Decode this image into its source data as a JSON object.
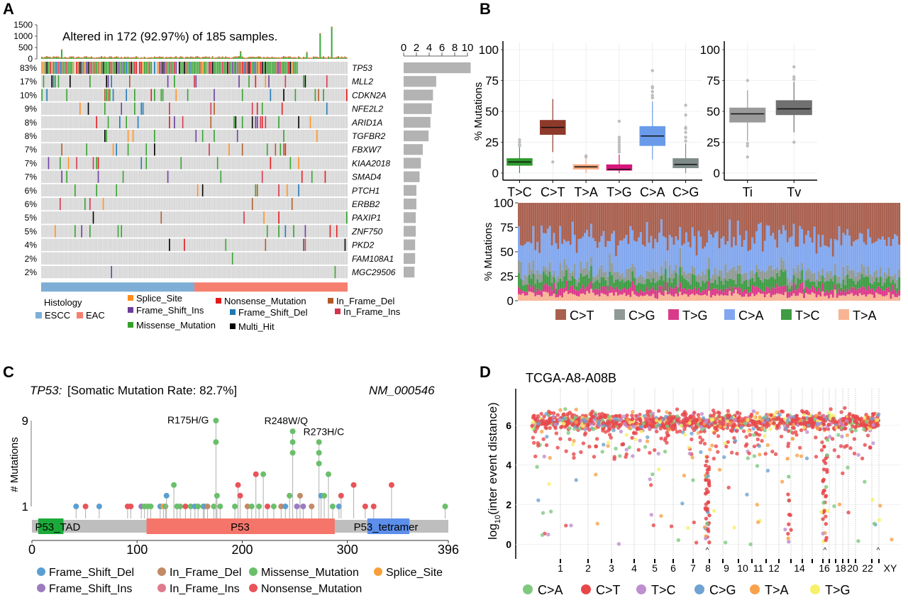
{
  "panels": {
    "A": "A",
    "B": "B",
    "C": "C",
    "D": "D"
  },
  "chart_data": [
    {
      "id": "A",
      "type": "heatmap",
      "subtype": "oncoplot",
      "title": "Altered in 172 (92.97%) of 185 samples.",
      "tmb_axis_ticks": [
        "0",
        "500",
        "1000",
        "1500"
      ],
      "tmb_ylim": [
        0,
        1500
      ],
      "n_samples": 185,
      "n_altered": 172,
      "genes": [
        {
          "name": "TP53",
          "pct": "83%",
          "freq": 0.83,
          "count": 10.5
        },
        {
          "name": "MLL2",
          "pct": "17%",
          "freq": 0.17,
          "count": 5.1
        },
        {
          "name": "CDKN2A",
          "pct": "10%",
          "freq": 0.1,
          "count": 4.6
        },
        {
          "name": "NFE2L2",
          "pct": "9%",
          "freq": 0.09,
          "count": 4.4
        },
        {
          "name": "ARID1A",
          "pct": "8%",
          "freq": 0.08,
          "count": 4.2
        },
        {
          "name": "TGFBR2",
          "pct": "8%",
          "freq": 0.08,
          "count": 3.9
        },
        {
          "name": "FBXW7",
          "pct": "7%",
          "freq": 0.07,
          "count": 3.0
        },
        {
          "name": "KIAA2018",
          "pct": "7%",
          "freq": 0.07,
          "count": 2.7
        },
        {
          "name": "SMAD4",
          "pct": "7%",
          "freq": 0.07,
          "count": 2.5
        },
        {
          "name": "PTCH1",
          "pct": "6%",
          "freq": 0.06,
          "count": 2.0
        },
        {
          "name": "ERBB2",
          "pct": "6%",
          "freq": 0.06,
          "count": 2.0
        },
        {
          "name": "PAXIP1",
          "pct": "5%",
          "freq": 0.05,
          "count": 1.9
        },
        {
          "name": "ZNF750",
          "pct": "5%",
          "freq": 0.05,
          "count": 1.9
        },
        {
          "name": "PKD2",
          "pct": "4%",
          "freq": 0.04,
          "count": 1.8
        },
        {
          "name": "FAM108A1",
          "pct": "2%",
          "freq": 0.02,
          "count": 1.8
        },
        {
          "name": "MGC29506",
          "pct": "2%",
          "freq": 0.02,
          "count": 1.7
        }
      ],
      "side_bar_ticks": [
        "0",
        "2",
        "4",
        "6",
        "8",
        "10"
      ],
      "side_bar_xlim": [
        0,
        10
      ],
      "histology": {
        "title": "Histology",
        "groups": [
          {
            "name": "ESCC",
            "color": "#7EAED6",
            "fraction": 0.5
          },
          {
            "name": "EAC",
            "color": "#F6806F",
            "fraction": 0.5
          }
        ]
      },
      "variant_legend": [
        {
          "name": "Splice_Site",
          "color": "#FF8C1A"
        },
        {
          "name": "Nonsense_Mutation",
          "color": "#E31A1C"
        },
        {
          "name": "In_Frame_Del",
          "color": "#B15928"
        },
        {
          "name": "Frame_Shift_Ins",
          "color": "#6A3D9A"
        },
        {
          "name": "Frame_Shift_Del",
          "color": "#1F78B4"
        },
        {
          "name": "In_Frame_Ins",
          "color": "#D6334D"
        },
        {
          "name": "Missense_Mutation",
          "color": "#33A02C"
        },
        {
          "name": "Multi_Hit",
          "color": "#000000"
        }
      ]
    },
    {
      "id": "B1",
      "type": "box",
      "ylabel": "% Mutations",
      "ylim": [
        0,
        100
      ],
      "yticks": [
        "0",
        "25",
        "50",
        "75",
        "100"
      ],
      "categories": [
        "T>C",
        "C>T",
        "T>A",
        "T>G",
        "C>A",
        "C>G"
      ],
      "boxes": [
        {
          "name": "T>C",
          "color": "#2E9A2E",
          "q1": 6,
          "median": 9,
          "q3": 12,
          "whisker_low": 0,
          "whisker_high": 21,
          "outliers": [
            22,
            23,
            25,
            27
          ]
        },
        {
          "name": "C>T",
          "color": "#8E3A2B",
          "q1": 31,
          "median": 37,
          "q3": 43,
          "whisker_low": 17,
          "whisker_high": 60,
          "outliers": [
            9
          ]
        },
        {
          "name": "T>A",
          "color": "#F7A57C",
          "q1": 3,
          "median": 5,
          "q3": 7,
          "whisker_low": 0,
          "whisker_high": 12,
          "outliers": [
            13,
            14
          ]
        },
        {
          "name": "T>G",
          "color": "#D6157C",
          "q1": 2,
          "median": 3,
          "q3": 7,
          "whisker_low": 0,
          "whisker_high": 15,
          "outliers": [
            17,
            19,
            21,
            23,
            25,
            27,
            29,
            42
          ]
        },
        {
          "name": "C>A",
          "color": "#6A9BEA",
          "q1": 22,
          "median": 30,
          "q3": 38,
          "whisker_low": 11,
          "whisker_high": 58,
          "outliers": [
            61,
            63,
            66,
            69,
            70,
            83
          ]
        },
        {
          "name": "C>G",
          "color": "#7E8B88",
          "q1": 4,
          "median": 7,
          "q3": 12,
          "whisker_low": 0,
          "whisker_high": 24,
          "outliers": [
            26,
            29,
            33,
            36,
            37,
            47,
            55
          ]
        }
      ]
    },
    {
      "id": "B2",
      "type": "box",
      "ylim": [
        0,
        100
      ],
      "yticks": [
        "0",
        "25",
        "50",
        "75",
        "100"
      ],
      "categories": [
        "Ti",
        "Tv"
      ],
      "boxes": [
        {
          "name": "Ti",
          "color": "#9A9A9A",
          "q1": 41,
          "median": 48,
          "q3": 53,
          "whisker_low": 26,
          "whisker_high": 67,
          "outliers": [
            13,
            22,
            24,
            75
          ]
        },
        {
          "name": "Tv",
          "color": "#707070",
          "q1": 47,
          "median": 52,
          "q3": 59,
          "whisker_low": 33,
          "whisker_high": 74,
          "outliers": [
            25,
            76,
            78,
            86
          ]
        }
      ]
    },
    {
      "id": "B3",
      "type": "bar",
      "subtype": "stacked-percent",
      "ylabel": "% Mutations",
      "ylim": [
        0,
        100
      ],
      "yticks": [
        "0",
        "25",
        "50",
        "75",
        "100"
      ],
      "n_samples": 185,
      "stack_order_bottom_to_top": [
        "T>A",
        "T>G",
        "T>C",
        "C>G",
        "C>A",
        "C>T"
      ],
      "mean_composition": {
        "T>A": 6,
        "T>G": 6,
        "T>C": 9,
        "C>G": 9,
        "C>A": 32,
        "C>T": 38
      },
      "legend": [
        {
          "name": "C>T",
          "color": "#A9604F"
        },
        {
          "name": "C>G",
          "color": "#8F9A97"
        },
        {
          "name": "T>G",
          "color": "#DA3A8A"
        },
        {
          "name": "C>A",
          "color": "#82A7EE"
        },
        {
          "name": "T>C",
          "color": "#3F9C45"
        },
        {
          "name": "T>A",
          "color": "#F9B494"
        }
      ]
    },
    {
      "id": "C",
      "type": "scatter",
      "subtype": "lollipop",
      "gene": "TP53:",
      "title": "[Somatic Mutation Rate: 82.7%]",
      "transcript": "NM_000546",
      "ylabel": "# Mutations",
      "yticks": [
        "1",
        "9"
      ],
      "ylim": [
        1,
        9
      ],
      "xticks": [
        "0",
        "100",
        "200",
        "300",
        "396"
      ],
      "xlim": [
        0,
        396
      ],
      "domains": [
        {
          "name": "P53_TAD",
          "label": "P53_TAD",
          "start": 6,
          "end": 30,
          "color": "#1BAA3A"
        },
        {
          "name": "P53",
          "label": "P53",
          "start": 109,
          "end": 288,
          "color": "#F5756A"
        },
        {
          "name": "P53_tetramer",
          "label": "P53_tetramer",
          "start": 319,
          "end": 359,
          "color": "#5C8FEA"
        }
      ],
      "labeled_hotspots": [
        {
          "label": "R175H/G",
          "pos": 175,
          "count": 9
        },
        {
          "label": "R248W/Q",
          "pos": 248,
          "count": 8
        },
        {
          "label": "R273H/C",
          "pos": 273,
          "count": 7
        }
      ],
      "mutations": [
        {
          "pos": 42,
          "count": 1,
          "type": "Frame_Shift_Del"
        },
        {
          "pos": 51,
          "count": 1,
          "type": "Nonsense_Mutation"
        },
        {
          "pos": 64,
          "count": 1,
          "type": "Frame_Shift_Del"
        },
        {
          "pos": 91,
          "count": 1,
          "type": "Nonsense_Mutation"
        },
        {
          "pos": 94,
          "count": 1,
          "type": "Nonsense_Mutation"
        },
        {
          "pos": 104,
          "count": 1,
          "type": "Frame_Shift_Ins"
        },
        {
          "pos": 107,
          "count": 1,
          "type": "Missense_Mutation"
        },
        {
          "pos": 110,
          "count": 1,
          "type": "Missense_Mutation"
        },
        {
          "pos": 113,
          "count": 1,
          "type": "Missense_Mutation"
        },
        {
          "pos": 122,
          "count": 1,
          "type": "Frame_Shift_Del"
        },
        {
          "pos": 125,
          "count": 1,
          "type": "Splice_Site"
        },
        {
          "pos": 127,
          "count": 1,
          "type": "Missense_Mutation"
        },
        {
          "pos": 128,
          "count": 2,
          "type": "Frame_Shift_Del"
        },
        {
          "pos": 135,
          "count": 3,
          "type": "Missense_Mutation"
        },
        {
          "pos": 138,
          "count": 1,
          "type": "Missense_Mutation"
        },
        {
          "pos": 141,
          "count": 1,
          "type": "Missense_Mutation"
        },
        {
          "pos": 146,
          "count": 1,
          "type": "Nonsense_Mutation"
        },
        {
          "pos": 151,
          "count": 1,
          "type": "Missense_Mutation"
        },
        {
          "pos": 155,
          "count": 1,
          "type": "Frame_Shift_Del"
        },
        {
          "pos": 158,
          "count": 1,
          "type": "Missense_Mutation"
        },
        {
          "pos": 163,
          "count": 1,
          "type": "Missense_Mutation"
        },
        {
          "pos": 164,
          "count": 1,
          "type": "Frame_Shift_Del"
        },
        {
          "pos": 167,
          "count": 1,
          "type": "In_Frame_Del"
        },
        {
          "pos": 173,
          "count": 1,
          "type": "Missense_Mutation"
        },
        {
          "pos": 175,
          "count": 9,
          "type": "Missense_Mutation"
        },
        {
          "pos": 176,
          "count": 2,
          "type": "Missense_Mutation"
        },
        {
          "pos": 179,
          "count": 1,
          "type": "Missense_Mutation"
        },
        {
          "pos": 193,
          "count": 1,
          "type": "Missense_Mutation"
        },
        {
          "pos": 196,
          "count": 3,
          "type": "Nonsense_Mutation"
        },
        {
          "pos": 198,
          "count": 2,
          "type": "Nonsense_Mutation"
        },
        {
          "pos": 205,
          "count": 1,
          "type": "In_Frame_Del"
        },
        {
          "pos": 209,
          "count": 1,
          "type": "Missense_Mutation"
        },
        {
          "pos": 213,
          "count": 4,
          "type": "Nonsense_Mutation"
        },
        {
          "pos": 216,
          "count": 1,
          "type": "Missense_Mutation"
        },
        {
          "pos": 220,
          "count": 4,
          "type": "Missense_Mutation"
        },
        {
          "pos": 224,
          "count": 1,
          "type": "Nonsense_Mutation"
        },
        {
          "pos": 230,
          "count": 1,
          "type": "Missense_Mutation"
        },
        {
          "pos": 237,
          "count": 1,
          "type": "In_Frame_Del"
        },
        {
          "pos": 241,
          "count": 1,
          "type": "Frame_Shift_Del"
        },
        {
          "pos": 245,
          "count": 2,
          "type": "Missense_Mutation"
        },
        {
          "pos": 248,
          "count": 8,
          "type": "Missense_Mutation"
        },
        {
          "pos": 252,
          "count": 1,
          "type": "Frame_Shift_Ins"
        },
        {
          "pos": 255,
          "count": 2,
          "type": "In_Frame_Del"
        },
        {
          "pos": 258,
          "count": 1,
          "type": "Frame_Shift_Ins"
        },
        {
          "pos": 266,
          "count": 1,
          "type": "In_Frame_Del"
        },
        {
          "pos": 273,
          "count": 7,
          "type": "Missense_Mutation"
        },
        {
          "pos": 275,
          "count": 2,
          "type": "Frame_Shift_Del"
        },
        {
          "pos": 278,
          "count": 2,
          "type": "Missense_Mutation"
        },
        {
          "pos": 282,
          "count": 4,
          "type": "Missense_Mutation"
        },
        {
          "pos": 286,
          "count": 1,
          "type": "Missense_Mutation"
        },
        {
          "pos": 292,
          "count": 1,
          "type": "Frame_Shift_Del"
        },
        {
          "pos": 294,
          "count": 2,
          "type": "Nonsense_Mutation"
        },
        {
          "pos": 306,
          "count": 3,
          "type": "Nonsense_Mutation"
        },
        {
          "pos": 317,
          "count": 1,
          "type": "Nonsense_Mutation"
        },
        {
          "pos": 325,
          "count": 1,
          "type": "Nonsense_Mutation"
        },
        {
          "pos": 342,
          "count": 3,
          "type": "Nonsense_Mutation"
        },
        {
          "pos": 393,
          "count": 1,
          "type": "Missense_Mutation"
        }
      ],
      "legend": [
        {
          "name": "Frame_Shift_Del",
          "color": "#5B9FD2"
        },
        {
          "name": "In_Frame_Del",
          "color": "#C28A66"
        },
        {
          "name": "Missense_Mutation",
          "color": "#6BBF6B"
        },
        {
          "name": "Splice_Site",
          "color": "#F7A03A"
        },
        {
          "name": "Frame_Shift_Ins",
          "color": "#9C7CC0"
        },
        {
          "name": "In_Frame_Ins",
          "color": "#E07A8D"
        },
        {
          "name": "Nonsense_Mutation",
          "color": "#E8545A"
        }
      ]
    },
    {
      "id": "D",
      "type": "scatter",
      "subtype": "rainfall",
      "title": "TCGA-A8-A08B",
      "ylabel": "log10(inter event distance)",
      "ylabel_base": "log",
      "ylabel_sub": "10",
      "ylabel_rest": "(inter event distance)",
      "yticks": [
        "0",
        "2",
        "4",
        "6"
      ],
      "ylim": [
        -0.3,
        7.6
      ],
      "chromosome_labels": [
        "1",
        "2",
        "3",
        "4",
        "5",
        "6",
        "7",
        "8",
        "9",
        "10",
        "11",
        "12",
        "14",
        "16",
        "18",
        "20",
        "22",
        "XY"
      ],
      "kataegis_markers": [
        "8",
        "17",
        "X"
      ],
      "legend": [
        {
          "name": "C>A",
          "color": "#7FC97F"
        },
        {
          "name": "C>T",
          "color": "#E8474A"
        },
        {
          "name": "T>C",
          "color": "#BF8FD0"
        },
        {
          "name": "C>G",
          "color": "#6FA3D2"
        },
        {
          "name": "T>A",
          "color": "#F9A24B"
        },
        {
          "name": "T>G",
          "color": "#F7F06A"
        }
      ]
    }
  ]
}
